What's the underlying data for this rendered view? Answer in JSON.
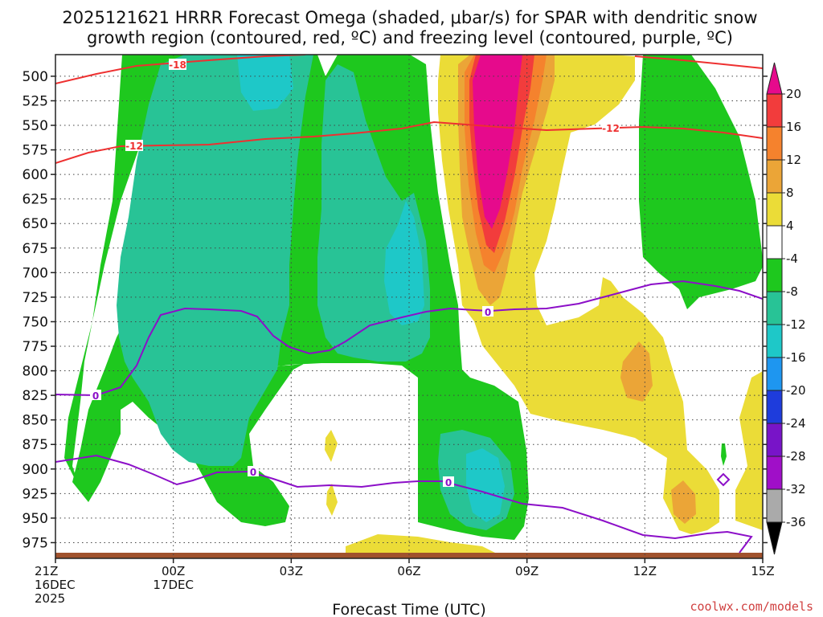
{
  "title_line1": "2025121621 HRRR Forecast Omega (shaded, μbar/s) for SPAR with dendritic snow",
  "title_line2": "growth region (contoured, red, ºC) and freezing level (contoured, purple, ºC)",
  "x_axis_label": "Forecast Time (UTC)",
  "credit": "coolwx.com/models",
  "chart_data": {
    "type": "heatmap",
    "title": "2025121621 HRRR Forecast Omega (shaded, μbar/s) for SPAR with dendritic snow growth region (contoured, red, ºC) and freezing level (contoured, purple, ºC)",
    "xlabel": "Forecast Time (UTC)",
    "ylabel": "",
    "y_ticks": [
      "500",
      "525",
      "550",
      "575",
      "600",
      "625",
      "650",
      "675",
      "700",
      "725",
      "750",
      "775",
      "800",
      "825",
      "850",
      "875",
      "900",
      "925",
      "950",
      "975"
    ],
    "y_range_hpa": [
      478,
      991
    ],
    "y_inverted": true,
    "x_ticks": [
      {
        "line1": "21Z",
        "line2": "16DEC",
        "line3": "2025"
      },
      {
        "line1": "00Z",
        "line2": "17DEC",
        "line3": ""
      },
      {
        "line1": "03Z",
        "line2": "",
        "line3": ""
      },
      {
        "line1": "06Z",
        "line2": "",
        "line3": ""
      },
      {
        "line1": "09Z",
        "line2": "",
        "line3": ""
      },
      {
        "line1": "12Z",
        "line2": "",
        "line3": ""
      },
      {
        "line1": "15Z",
        "line2": "",
        "line3": ""
      }
    ],
    "x_range_hours": [
      0,
      18
    ],
    "grid": true,
    "colorbar": {
      "labels": [
        "20",
        "16",
        "12",
        "8",
        "4",
        "-4",
        "-8",
        "-12",
        "-16",
        "-20",
        "-24",
        "-28",
        "-32",
        "-36"
      ],
      "colors": [
        "#e60a8c",
        "#f23c3c",
        "#f5822d",
        "#eba537",
        "#ebdc37",
        "#ffffff",
        "#1ec81e",
        "#28c396",
        "#1ec8c8",
        "#1e96f0",
        "#1e3cdc",
        "#7814c8",
        "#a00fc8",
        "#aaaaaa",
        "#000000"
      ]
    },
    "contour_labels": {
      "dgz_red": [
        "-18",
        "-12",
        "-12"
      ],
      "freezing_purple": [
        "0",
        "0",
        "0",
        "0"
      ]
    },
    "omega_shading_hourly": {
      "levels_hpa": [
        500,
        525,
        550,
        575,
        600,
        625,
        650,
        675,
        700,
        725,
        750,
        775,
        800,
        825,
        850,
        875,
        900,
        925,
        950,
        975
      ],
      "hours": [
        0,
        18
      ],
      "values_ubar_s": []
    }
  }
}
